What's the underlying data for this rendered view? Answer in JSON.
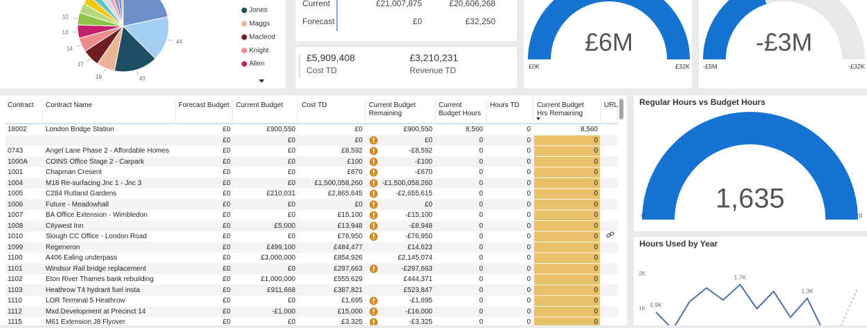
{
  "chart_data": [
    {
      "type": "pie",
      "categories": [
        null,
        null,
        "Jones",
        "Maggs",
        "Macleod",
        "Knight",
        "Allen",
        null,
        null,
        null,
        null,
        null,
        null,
        null,
        null,
        null
      ],
      "values": [
        60,
        44,
        43,
        18,
        17,
        14,
        13,
        12,
        10,
        9,
        8,
        8,
        7,
        6,
        5,
        3
      ],
      "colors": [
        "#6d8fca",
        "#a3cdf3",
        "#1d4e63",
        "#ecb496",
        "#6e1f1f",
        "#ef8a8e",
        "#c41f6c",
        "#8bc34a",
        "#b5d97a",
        "#f2c80f",
        "#5ec4c4",
        "#d9d9d9",
        "#f5a3c0",
        "#9b7ec2",
        "#4a90d9",
        "#e0a050"
      ]
    },
    {
      "type": "gauge",
      "value": {
        "value": 6000000,
        "label": "£6M"
      },
      "min": {
        "value": 0,
        "label": "£0K"
      },
      "max": {
        "value": 32000,
        "label": "£32K"
      },
      "color": "#1673d2"
    },
    {
      "type": "gauge",
      "value": {
        "value": -3000000,
        "label": "-£3M"
      },
      "min": {
        "value": -5000000,
        "label": "-£5M"
      },
      "max": {
        "value": -32000,
        "label": "-£32K"
      },
      "color": "#1673d2"
    },
    {
      "type": "gauge",
      "title": "Regular Hours vs Budget Hours",
      "value": {
        "value": 1635,
        "label": "1,635"
      },
      "min": 0,
      "max": 0,
      "color": "#1673d2"
    },
    {
      "type": "line",
      "title": "Hours Used by Year",
      "categories": [
        null,
        null,
        null,
        null,
        null,
        null,
        null,
        null,
        null,
        null,
        null,
        null,
        null
      ],
      "series": [
        {
          "color": "#4a6fa5",
          "dashed": false,
          "values": [
            900,
            400,
            1200,
            1600,
            1250,
            1700,
            1000,
            1500,
            750,
            1300,
            300,
            null,
            null
          ],
          "value_labels": [
            "0.9K",
            null,
            null,
            null,
            null,
            "1.7K",
            null,
            null,
            null,
            "1.3K",
            null,
            null,
            null
          ]
        },
        {
          "color": "#b0b0b0",
          "dashed": true,
          "values": [
            null,
            null,
            null,
            null,
            null,
            null,
            null,
            null,
            null,
            null,
            null,
            500,
            1600
          ]
        }
      ],
      "ylim": [
        0,
        2400
      ],
      "yticks": [
        {
          "value": 1000,
          "label": "1K"
        },
        {
          "value": 2000,
          "label": "2K"
        }
      ]
    }
  ],
  "kpi_table": {
    "rows": [
      [
        "Current",
        "£21,007,875",
        "£20,606,268"
      ],
      [
        "Forecast",
        "£0",
        "£32,250"
      ]
    ]
  },
  "kpi_cards": [
    {
      "value": "£5,909,408",
      "label": "Cost TD"
    },
    {
      "value": "£3,210,231",
      "label": "Revenue TD"
    }
  ],
  "contracts_table": {
    "columns": [
      "Contract",
      "Contract Name",
      "Forecast Budget",
      "Current Budget",
      "Cost TD",
      "Current Budget Remaining",
      "Current Budget Hours",
      "Hours TD",
      "Current Budget Hrs Remaining",
      "URL"
    ],
    "rows": [
      [
        "18002",
        "London Bridge Station",
        "£0",
        "£900,550",
        "£0",
        "£900,550",
        "8,560",
        "0",
        "8,560",
        null
      ],
      [
        null,
        null,
        "£0",
        "£0",
        "£0",
        "£0",
        "0",
        "0",
        "0",
        null
      ],
      [
        "0743",
        "Angel Lane Phase 2 - Affordable Homes",
        "£0",
        "£0",
        "£8,592",
        "-£8,592",
        "0",
        "0",
        "0",
        null
      ],
      [
        "1000A",
        "COINS Office Stage 2 - Carpark",
        "£0",
        "£0",
        "£100",
        "-£100",
        "0",
        "0",
        "0",
        null
      ],
      [
        "1001",
        "Chapman Cresent",
        "£0",
        "£0",
        "£670",
        "-£670",
        "0",
        "0",
        "0",
        null
      ],
      [
        "1004",
        "M18 Re-surfacing Jnc 1 - Jnc 3",
        "£0",
        "£0",
        "£1,500,058,260",
        "-£1,500,058,260",
        "0",
        "0",
        "0",
        null
      ],
      [
        "1005",
        "C284 Rutland Gardens",
        "£0",
        "£210,031",
        "£2,865,645",
        "-£2,655,615",
        "0",
        "0",
        "0",
        null
      ],
      [
        "1006",
        "Future - Meadowhall",
        "£0",
        "£0",
        "£0",
        "£0",
        "0",
        "0",
        "0",
        null
      ],
      [
        "1007",
        "BA Office Extension - Wimbledon",
        "£0",
        "£0",
        "£15,100",
        "-£15,100",
        "0",
        "0",
        "0",
        null
      ],
      [
        "1008",
        "Citywest Inn",
        "£0",
        "£5,000",
        "£13,948",
        "-£8,948",
        "0",
        "0",
        "0",
        null
      ],
      [
        "1010",
        "Slough CC Office - London Road",
        "£0",
        "£0",
        "£76,950",
        "-£76,950",
        "0",
        "0",
        "0",
        null
      ],
      [
        "1099",
        "Regeneron",
        "£0",
        "£499,100",
        "£484,477",
        "£14,623",
        "0",
        "0",
        "0",
        null
      ],
      [
        "1100",
        "A406 Ealing underpass",
        "£0",
        "£3,000,000",
        "£854,926",
        "£2,145,074",
        "0",
        "0",
        "0",
        null
      ],
      [
        "1101",
        "Windsor Rail bridge replacement",
        "£0",
        "£0",
        "£297,663",
        "-£297,663",
        "0",
        "0",
        "0",
        null
      ],
      [
        "1102",
        "Eton River Thames bank rebuilding",
        "£0",
        "£1,000,000",
        "£555,629",
        "£444,371",
        "0",
        "0",
        "0",
        null
      ],
      [
        "1103",
        "Heathrow T4 hydrant fuel insta",
        "£0",
        "£911,668",
        "£387,821",
        "£523,847",
        "0",
        "0",
        "0",
        null
      ],
      [
        "1110",
        "LOR Terminal 5 Heathrow",
        "£0",
        "£0",
        "£1,695",
        "-£1,695",
        "0",
        "0",
        "0",
        null
      ],
      [
        "1112",
        "Mxd.Development at Precinct 14",
        "£0",
        "-£1,000",
        "£15,000",
        "-£16,000",
        "0",
        "0",
        "0",
        null
      ],
      [
        "1115",
        "M61 Extension J8 Flyover",
        "£0",
        "£0",
        "£3,325",
        "-£3,325",
        "0",
        "0",
        "0",
        null
      ]
    ]
  }
}
